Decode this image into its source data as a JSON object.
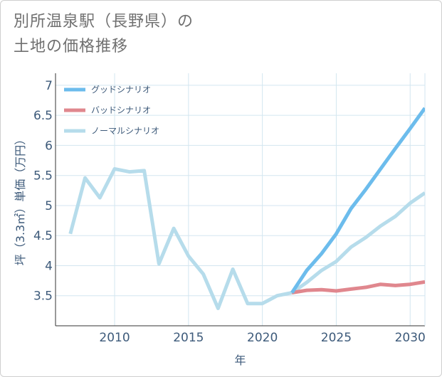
{
  "title_line1": "別所温泉駅（長野県）の",
  "title_line2": "土地の価格推移",
  "chart_data": {
    "type": "line",
    "xlabel": "年",
    "ylabel": "坪（3.3㎡）単価（万円）",
    "xlim": [
      2006,
      2031
    ],
    "ylim": [
      3.0,
      7.2
    ],
    "x_ticks": [
      2010,
      2015,
      2020,
      2025,
      2030
    ],
    "y_ticks": [
      3.5,
      4,
      4.5,
      5,
      5.5,
      6,
      6.5,
      7
    ],
    "y_tick_labels": [
      "3.5",
      "4",
      "4.5",
      "5",
      "5.5",
      "6",
      "6.5",
      "7"
    ],
    "grid": true,
    "legend_position": "top-left",
    "series": [
      {
        "name": "グッドシナリオ",
        "color": "#6cbcec",
        "x": [
          2022,
          2023,
          2024,
          2025,
          2026,
          2027,
          2028,
          2029,
          2030,
          2031
        ],
        "values": [
          3.55,
          3.92,
          4.2,
          4.53,
          4.95,
          5.27,
          5.61,
          5.95,
          6.28,
          6.62
        ]
      },
      {
        "name": "バッドシナリオ",
        "color": "#e0878e",
        "x": [
          2022,
          2023,
          2024,
          2025,
          2026,
          2027,
          2028,
          2029,
          2030,
          2031
        ],
        "values": [
          3.55,
          3.59,
          3.6,
          3.58,
          3.61,
          3.64,
          3.69,
          3.67,
          3.69,
          3.73
        ]
      },
      {
        "name": "ノーマルシナリオ",
        "color": "#b6dceb",
        "x": [
          2007,
          2008,
          2009,
          2010,
          2011,
          2012,
          2013,
          2014,
          2015,
          2016,
          2017,
          2018,
          2019,
          2020,
          2021,
          2022,
          2023,
          2024,
          2025,
          2026,
          2027,
          2028,
          2029,
          2030,
          2031
        ],
        "values": [
          4.53,
          5.46,
          5.13,
          5.61,
          5.56,
          5.58,
          4.03,
          4.62,
          4.16,
          3.86,
          3.29,
          3.94,
          3.37,
          3.37,
          3.5,
          3.55,
          3.72,
          3.92,
          4.07,
          4.31,
          4.47,
          4.66,
          4.82,
          5.04,
          5.21
        ]
      }
    ]
  }
}
